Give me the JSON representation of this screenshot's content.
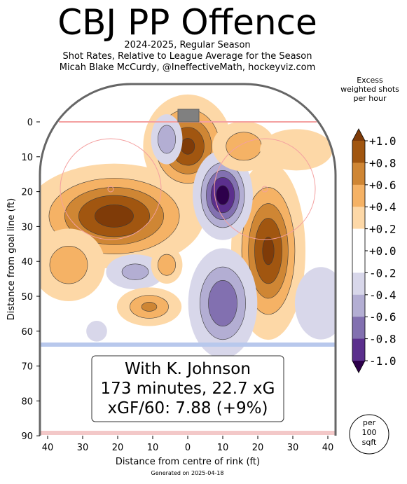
{
  "header": {
    "title": "CBJ PP Offence",
    "subtitle_1": "2024-2025, Regular Season",
    "subtitle_2": "Shot Rates, Relative to League Average for the Season",
    "subtitle_3": "Micah Blake McCurdy, @IneffectiveMath, hockeyviz.com"
  },
  "colorbar": {
    "title_1": "Excess",
    "title_2": "weighted shots",
    "title_3": "per hour",
    "ticks": [
      "+1.0",
      "+0.8",
      "+0.6",
      "+0.4",
      "+0.2",
      "+0.0",
      "-0.2",
      "-0.4",
      "-0.6",
      "-0.8",
      "-1.0"
    ],
    "colors": [
      "#7f3b08",
      "#a15610",
      "#cf8634",
      "#f5b265",
      "#fdd8a7",
      "#ffffff",
      "#d8d7ea",
      "#b3aed3",
      "#8270b0",
      "#5b2f8d",
      "#2d004b"
    ]
  },
  "annotation": {
    "line_1": "With K. Johnson",
    "line_2": "173 minutes, 22.7 xG",
    "line_3": "xGF/60: 7.88 (+9%)"
  },
  "per_unit": {
    "line_1": "per",
    "line_2": "100",
    "line_3": "sqft"
  },
  "footer": "Generated on 2025-04-18",
  "chart_data": {
    "type": "heatmap",
    "xlabel": "Distance from centre of rink (ft)",
    "ylabel": "Distance from goal line (ft)",
    "xlim": [
      -42.5,
      42.5
    ],
    "ylim": [
      90,
      -11
    ],
    "x_ticks": [
      40,
      30,
      20,
      10,
      0,
      10,
      20,
      30,
      40
    ],
    "y_ticks": [
      0,
      10,
      20,
      30,
      40,
      50,
      60,
      70,
      80,
      90
    ],
    "value_range": [
      -1.0,
      1.0
    ],
    "hotspots": [
      {
        "x": -21,
        "y": 27,
        "value": 1.0,
        "sx": 12,
        "sy": 7
      },
      {
        "x": 0,
        "y": 7,
        "value": 0.95,
        "sx": 6,
        "sy": 7
      },
      {
        "x": 23,
        "y": 37,
        "value": 0.95,
        "sx": 5,
        "sy": 12
      },
      {
        "x": 10,
        "y": 21,
        "value": -1.0,
        "sx": 4,
        "sy": 6
      },
      {
        "x": 10,
        "y": 52,
        "value": -0.7,
        "sx": 5,
        "sy": 8
      },
      {
        "x": -6,
        "y": 5,
        "value": -0.5,
        "sx": 2.5,
        "sy": 4
      },
      {
        "x": -15,
        "y": 43,
        "value": -0.4,
        "sx": 5,
        "sy": 3
      },
      {
        "x": -34,
        "y": 41,
        "value": 0.45,
        "sx": 6,
        "sy": 6
      },
      {
        "x": -11,
        "y": 53,
        "value": 0.55,
        "sx": 5,
        "sy": 3
      },
      {
        "x": 16,
        "y": 7,
        "value": 0.5,
        "sx": 5,
        "sy": 4
      },
      {
        "x": 31,
        "y": 8,
        "value": 0.3,
        "sx": 7,
        "sy": 4
      },
      {
        "x": -6,
        "y": 41,
        "value": 0.5,
        "sx": 2.5,
        "sy": 3
      },
      {
        "x": 38,
        "y": 52,
        "value": -0.3,
        "sx": 5,
        "sy": 7
      },
      {
        "x": -26,
        "y": 60,
        "value": -0.3,
        "sx": 2,
        "sy": 2
      }
    ]
  }
}
